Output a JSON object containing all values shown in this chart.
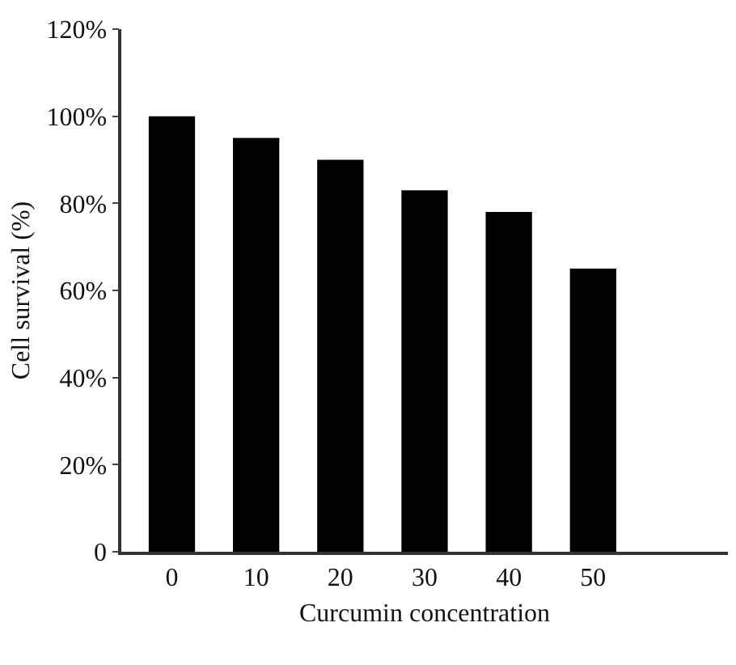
{
  "chart_data": {
    "type": "bar",
    "xlabel": "Curcumin concentration",
    "ylabel": "Cell survival (%)",
    "categories": [
      "0",
      "10",
      "20",
      "30",
      "40",
      "50"
    ],
    "values": [
      100,
      95,
      90,
      83,
      78,
      65
    ],
    "color": "#000000",
    "ylim": [
      0,
      120
    ],
    "yticks": [
      0,
      {
        "value": 20,
        "label": "20%"
      },
      {
        "value": 40,
        "label": "40%"
      },
      {
        "value": 60,
        "label": "60%"
      },
      {
        "value": 80,
        "label": "80%"
      },
      {
        "value": 100,
        "label": "100%"
      },
      {
        "value": 120,
        "label": "120%"
      }
    ],
    "grid": false
  }
}
